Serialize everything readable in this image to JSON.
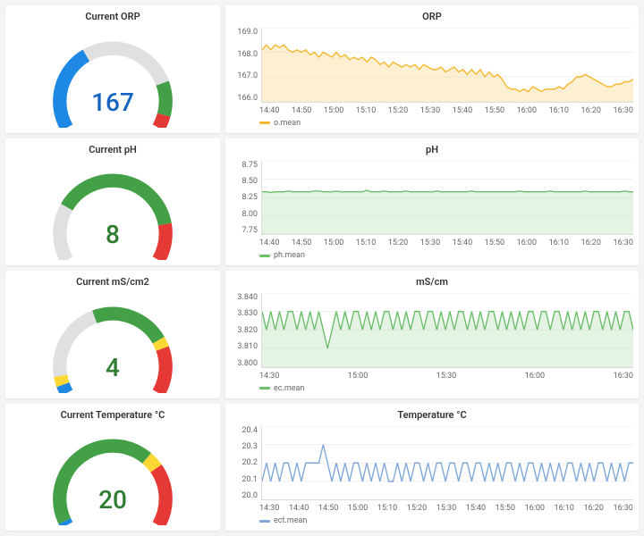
{
  "layout": {
    "background": "#f3f4f6",
    "panel_bg": "#ffffff",
    "grid_color": "#eeeeee",
    "axis_color": "#dddddd",
    "text_color": "#333333",
    "tick_color": "#666666"
  },
  "x_ticks_a": [
    "14:40",
    "14:50",
    "15:00",
    "15:10",
    "15:20",
    "15:30",
    "15:40",
    "15:50",
    "16:00",
    "16:10",
    "16:20",
    "16:30"
  ],
  "x_ticks_b": [
    "14:30",
    "15:00",
    "15:30",
    "16:00",
    "16:30"
  ],
  "x_ticks_c": [
    "14:30",
    "14:40",
    "14:50",
    "15:00",
    "15:10",
    "15:20",
    "15:30",
    "15:40",
    "15:50",
    "16:00",
    "16:10",
    "16:20",
    "16:30"
  ],
  "gauges": {
    "orp": {
      "title": "Current ORP",
      "value": "167",
      "value_color": "#1565c0",
      "segments": [
        {
          "from": -120,
          "to": -30,
          "color": "#1e88e5"
        },
        {
          "from": -30,
          "to": 70,
          "color": "#e0e0e0"
        },
        {
          "from": 70,
          "to": 105,
          "color": "#43a047"
        },
        {
          "from": 105,
          "to": 120,
          "color": "#e53935"
        }
      ]
    },
    "ph": {
      "title": "Current pH",
      "value": "8",
      "value_color": "#2e7d32",
      "segments": [
        {
          "from": -120,
          "to": -60,
          "color": "#e0e0e0"
        },
        {
          "from": -60,
          "to": 80,
          "color": "#43a047"
        },
        {
          "from": 80,
          "to": 120,
          "color": "#e53935"
        }
      ]
    },
    "ec": {
      "title": "Current mS/cm2",
      "value": "4",
      "value_color": "#2e7d32",
      "segments": [
        {
          "from": -120,
          "to": -110,
          "color": "#1e88e5"
        },
        {
          "from": -110,
          "to": -100,
          "color": "#fdd835"
        },
        {
          "from": -100,
          "to": -20,
          "color": "#e0e0e0"
        },
        {
          "from": -20,
          "to": 60,
          "color": "#43a047"
        },
        {
          "from": 60,
          "to": 70,
          "color": "#fdd835"
        },
        {
          "from": 70,
          "to": 120,
          "color": "#e53935"
        }
      ]
    },
    "temp": {
      "title": "Current Temperature °C",
      "value": "20",
      "value_color": "#2e7d32",
      "segments": [
        {
          "from": -120,
          "to": -115,
          "color": "#1e88e5"
        },
        {
          "from": -115,
          "to": 40,
          "color": "#43a047"
        },
        {
          "from": 40,
          "to": 55,
          "color": "#fdd835"
        },
        {
          "from": 55,
          "to": 120,
          "color": "#e53935"
        }
      ]
    }
  },
  "charts": {
    "orp": {
      "title": "ORP",
      "type": "area",
      "color": "#f5b82e",
      "fill_opacity": 0.22,
      "legend": "o.mean",
      "ymin": 166.0,
      "ymax": 169.0,
      "yticks": [
        "169.0",
        "168.0",
        "167.0",
        "166.0"
      ],
      "xticks_key": "x_ticks_a",
      "values": [
        168.1,
        168.3,
        168.1,
        168.3,
        168.2,
        168.3,
        168.1,
        168.0,
        168.1,
        168.0,
        168.1,
        167.9,
        168.0,
        167.8,
        168.0,
        167.9,
        167.8,
        168.0,
        167.8,
        167.9,
        167.7,
        167.8,
        167.7,
        167.8,
        167.6,
        167.8,
        167.7,
        167.5,
        167.6,
        167.4,
        167.6,
        167.5,
        167.4,
        167.5,
        167.4,
        167.5,
        167.3,
        167.5,
        167.4,
        167.3,
        167.3,
        167.4,
        167.2,
        167.3,
        167.4,
        167.2,
        167.3,
        167.1,
        167.3,
        167.1,
        167.3,
        167.0,
        167.2,
        167.0,
        167.1,
        166.9,
        166.6,
        166.5,
        166.5,
        166.4,
        166.5,
        166.4,
        166.6,
        166.5,
        166.4,
        166.5,
        166.5,
        166.5,
        166.6,
        166.5,
        166.7,
        166.8,
        167.0,
        167.0,
        167.1,
        167.0,
        166.9,
        166.8,
        166.7,
        166.6,
        166.6,
        166.7,
        166.7,
        166.8,
        166.8,
        166.9
      ]
    },
    "ph": {
      "title": "pH",
      "type": "area",
      "color": "#6bbf6b",
      "fill_opacity": 0.18,
      "legend": "ph.mean",
      "ymin": 7.75,
      "ymax": 8.75,
      "yticks": [
        "8.75",
        "8.50",
        "8.25",
        "8.00",
        "7.75"
      ],
      "xticks_key": "x_ticks_a",
      "values": [
        8.33,
        8.33,
        8.32,
        8.33,
        8.33,
        8.33,
        8.34,
        8.33,
        8.33,
        8.33,
        8.33,
        8.33,
        8.34,
        8.34,
        8.33,
        8.33,
        8.33,
        8.34,
        8.33,
        8.33,
        8.33,
        8.33,
        8.33,
        8.33,
        8.35,
        8.33,
        8.33,
        8.33,
        8.34,
        8.33,
        8.33,
        8.33,
        8.33,
        8.34,
        8.33,
        8.33,
        8.33,
        8.33,
        8.33,
        8.33,
        8.34,
        8.33,
        8.33,
        8.33,
        8.33,
        8.33,
        8.33,
        8.33,
        8.34,
        8.33,
        8.33,
        8.33,
        8.33,
        8.33,
        8.33,
        8.33,
        8.33,
        8.33,
        8.33,
        8.34,
        8.33,
        8.33,
        8.33,
        8.33,
        8.33,
        8.33,
        8.34,
        8.33,
        8.33,
        8.33,
        8.33,
        8.33,
        8.33,
        8.33,
        8.34,
        8.33,
        8.33,
        8.33,
        8.33,
        8.33,
        8.33,
        8.33,
        8.33,
        8.34,
        8.33,
        8.33
      ]
    },
    "ec": {
      "title": "mS/cm",
      "type": "area",
      "color": "#6bbf6b",
      "fill_opacity": 0.18,
      "legend": "ec.mean",
      "ymin": 3.8,
      "ymax": 3.84,
      "yticks": [
        "3.840",
        "3.830",
        "3.820",
        "3.810",
        "3.800"
      ],
      "xticks_key": "x_ticks_b",
      "values": [
        3.83,
        3.82,
        3.83,
        3.82,
        3.83,
        3.82,
        3.83,
        3.83,
        3.82,
        3.83,
        3.82,
        3.83,
        3.82,
        3.83,
        3.82,
        3.81,
        3.82,
        3.83,
        3.82,
        3.83,
        3.82,
        3.83,
        3.83,
        3.82,
        3.83,
        3.82,
        3.83,
        3.82,
        3.83,
        3.83,
        3.82,
        3.83,
        3.82,
        3.83,
        3.82,
        3.83,
        3.83,
        3.82,
        3.83,
        3.83,
        3.82,
        3.83,
        3.82,
        3.83,
        3.82,
        3.83,
        3.83,
        3.82,
        3.83,
        3.82,
        3.83,
        3.82,
        3.83,
        3.83,
        3.82,
        3.83,
        3.82,
        3.83,
        3.82,
        3.83,
        3.82,
        3.83,
        3.83,
        3.82,
        3.83,
        3.83,
        3.82,
        3.83,
        3.83,
        3.82,
        3.83,
        3.82,
        3.83,
        3.82,
        3.83,
        3.82,
        3.83,
        3.83,
        3.82,
        3.83,
        3.82,
        3.83,
        3.82,
        3.83,
        3.83,
        3.82
      ]
    },
    "temp": {
      "title": "Temperature °C",
      "type": "line-step",
      "color": "#7fa8d9",
      "legend": "ect.mean",
      "ymin": 20.0,
      "ymax": 20.4,
      "yticks": [
        "20.4",
        "20.3",
        "20.2",
        "20.1",
        "20.0"
      ],
      "xticks_key": "x_ticks_c",
      "values": [
        20.1,
        20.2,
        20.1,
        20.2,
        20.1,
        20.2,
        20.2,
        20.1,
        20.2,
        20.1,
        20.2,
        20.2,
        20.2,
        20.2,
        20.3,
        20.2,
        20.1,
        20.2,
        20.1,
        20.2,
        20.1,
        20.2,
        20.2,
        20.1,
        20.2,
        20.1,
        20.2,
        20.1,
        20.2,
        20.1,
        20.1,
        20.2,
        20.1,
        20.2,
        20.1,
        20.2,
        20.2,
        20.1,
        20.2,
        20.1,
        20.2,
        20.2,
        20.1,
        20.2,
        20.2,
        20.1,
        20.2,
        20.2,
        20.1,
        20.2,
        20.2,
        20.1,
        20.2,
        20.1,
        20.2,
        20.1,
        20.2,
        20.2,
        20.1,
        20.2,
        20.1,
        20.2,
        20.2,
        20.1,
        20.2,
        20.1,
        20.2,
        20.1,
        20.2,
        20.1,
        20.2,
        20.2,
        20.1,
        20.2,
        20.1,
        20.2,
        20.1,
        20.2,
        20.2,
        20.1,
        20.2,
        20.1,
        20.2,
        20.1,
        20.2,
        20.2
      ]
    }
  }
}
